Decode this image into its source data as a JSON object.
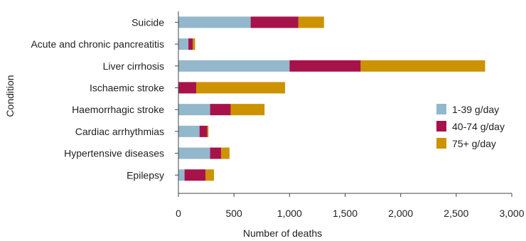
{
  "chart_data": {
    "type": "bar",
    "orientation": "horizontal",
    "stacked": true,
    "title": "",
    "xlabel": "Number of deaths",
    "ylabel": "Condition",
    "xlim": [
      0,
      3000
    ],
    "xticks": [
      0,
      500,
      1000,
      1500,
      2000,
      2500,
      3000
    ],
    "xtick_labels": [
      "0",
      "500",
      "1,000",
      "1,500",
      "2,000",
      "2,500",
      "3,000"
    ],
    "categories": [
      "Suicide",
      "Acute and chronic pancreatitis",
      "Liver cirrhosis",
      "Ischaemic stroke",
      "Haemorrhagic stroke",
      "Cardiac arrhythmias",
      "Hypertensive diseases",
      "Epilepsy"
    ],
    "series": [
      {
        "name": "1-39 g/day",
        "color": "#93b8cc",
        "values": [
          650,
          90,
          1000,
          0,
          285,
          190,
          285,
          55
        ]
      },
      {
        "name": "40-74 g/day",
        "color": "#a8124a",
        "values": [
          430,
          40,
          640,
          160,
          185,
          70,
          100,
          190
        ]
      },
      {
        "name": "75+ g/day",
        "color": "#cc9200",
        "values": [
          230,
          20,
          1120,
          800,
          305,
          10,
          75,
          75
        ]
      }
    ],
    "grid": false,
    "legend_position": "right"
  }
}
